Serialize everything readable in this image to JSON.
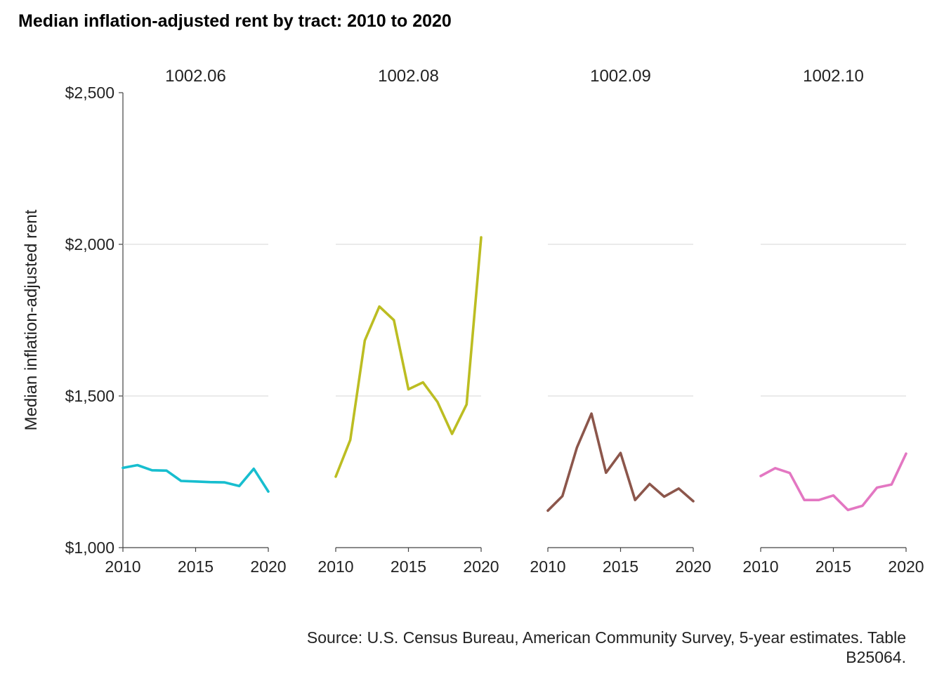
{
  "chart_data": {
    "type": "line",
    "title": "Median inflation-adjusted rent by tract: 2010 to 2020",
    "ylabel": "Median inflation-adjusted rent",
    "xlabel": "",
    "caption_lines": [
      "Source: U.S. Census Bureau, American Community Survey, 5-year estimates. Table",
      "B25064."
    ],
    "ylim": [
      1000,
      2500
    ],
    "xlim": [
      2010,
      2020
    ],
    "y_ticks": [
      1000,
      1500,
      2000,
      2500
    ],
    "y_tick_labels": [
      "$1,000",
      "$1,500",
      "$2,000",
      "$2,500"
    ],
    "x_ticks": [
      2010,
      2015,
      2020
    ],
    "x_tick_labels": [
      "2010",
      "2015",
      "2020"
    ],
    "grid": "horizontal major",
    "legend": "none",
    "x": [
      2010,
      2011,
      2012,
      2013,
      2014,
      2015,
      2016,
      2017,
      2018,
      2019,
      2020
    ],
    "facets": [
      {
        "label": "1002.06",
        "color": "#17becf",
        "values": [
          1263,
          1272,
          1255,
          1254,
          1220,
          1218,
          1216,
          1215,
          1203,
          1260,
          1185
        ]
      },
      {
        "label": "1002.08",
        "color": "#bcbd22",
        "values": [
          1234,
          1355,
          1683,
          1795,
          1750,
          1522,
          1545,
          1480,
          1375,
          1472,
          2023
        ]
      },
      {
        "label": "1002.09",
        "color": "#8c564b",
        "values": [
          1122,
          1170,
          1330,
          1442,
          1247,
          1312,
          1157,
          1210,
          1168,
          1195,
          1153
        ]
      },
      {
        "label": "1002.10",
        "color": "#e377c2",
        "values": [
          1236,
          1262,
          1246,
          1157,
          1157,
          1172,
          1124,
          1138,
          1198,
          1208,
          1310
        ]
      }
    ]
  }
}
